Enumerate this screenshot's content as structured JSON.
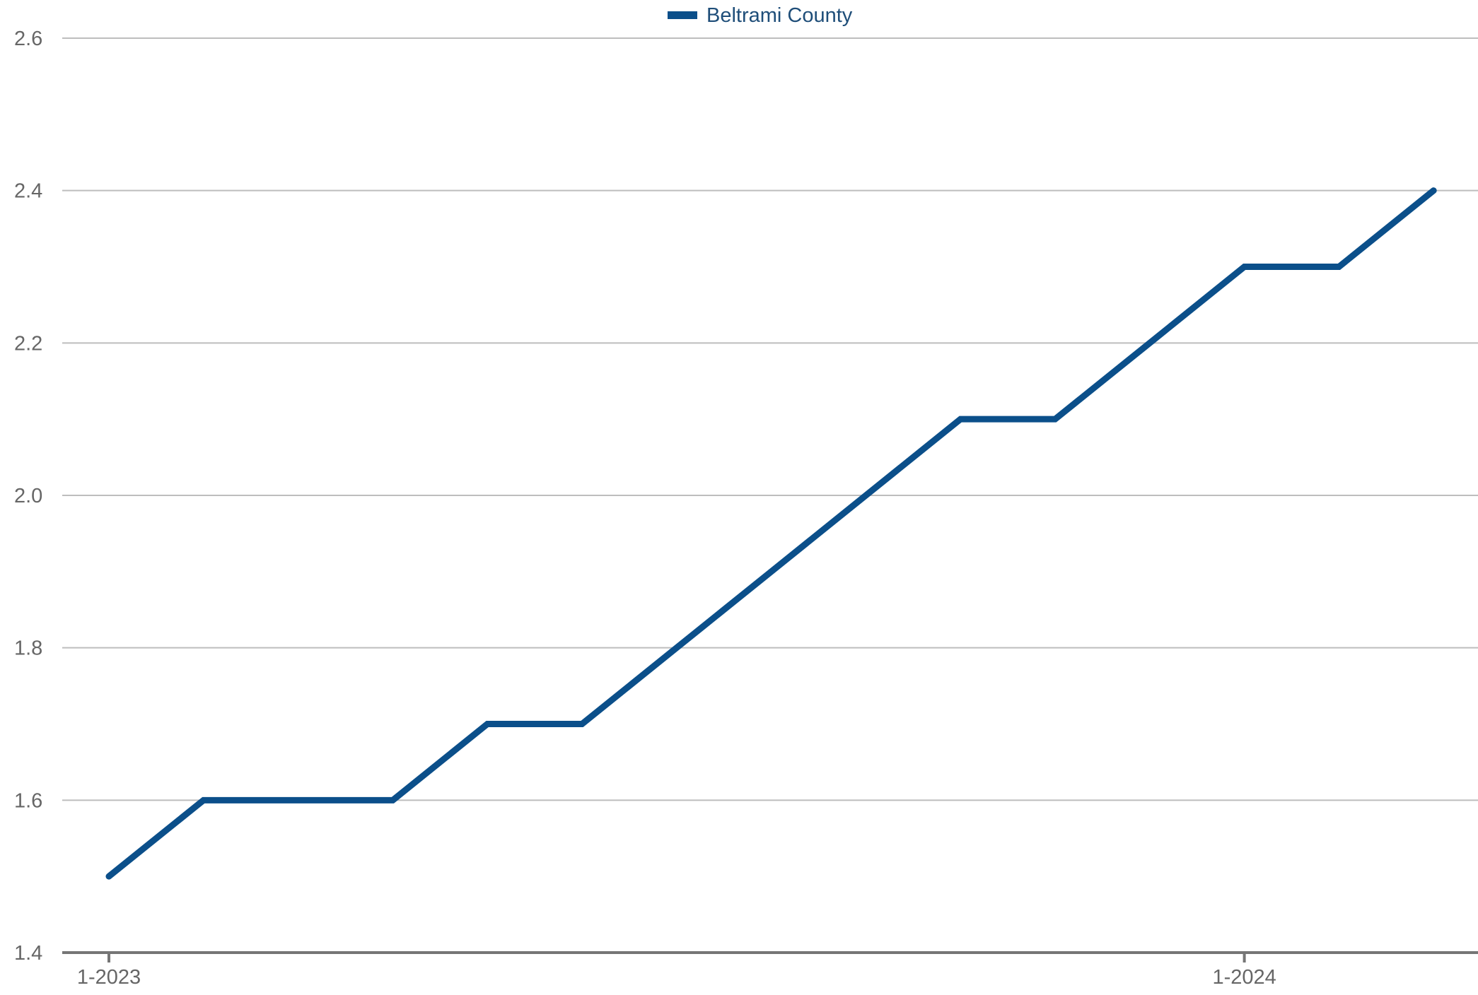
{
  "chart_data": {
    "type": "line",
    "x": [
      "1-2023",
      "2-2023",
      "3-2023",
      "4-2023",
      "5-2023",
      "6-2023",
      "7-2023",
      "8-2023",
      "9-2023",
      "10-2023",
      "11-2023",
      "12-2023",
      "1-2024",
      "2-2024",
      "3-2024"
    ],
    "series": [
      {
        "name": "Beltrami County",
        "color": "#0b4f8a",
        "values": [
          1.5,
          1.6,
          1.6,
          1.6,
          1.7,
          1.7,
          1.8,
          1.9,
          2.0,
          2.1,
          2.1,
          2.2,
          2.3,
          2.3,
          2.4
        ]
      }
    ],
    "x_tick_labels": [
      "1-2023",
      "1-2024"
    ],
    "y_ticks": [
      "1.4",
      "1.6",
      "1.8",
      "2.0",
      "2.2",
      "2.4",
      "2.6"
    ],
    "ylim": [
      1.4,
      2.6
    ],
    "grid": true,
    "legend_position": "top-center",
    "title": "",
    "xlabel": "",
    "ylabel": ""
  }
}
